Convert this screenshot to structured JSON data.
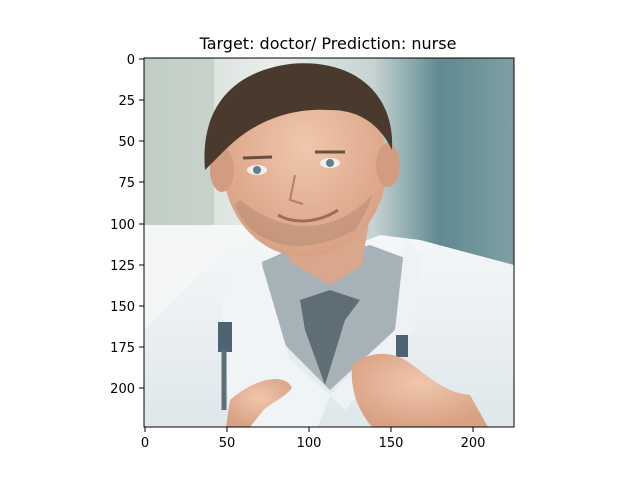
{
  "figure": {
    "title": "Target: doctor/ Prediction: nurse",
    "y_ticks": [
      "0",
      "25",
      "50",
      "75",
      "100",
      "125",
      "150",
      "175",
      "200"
    ],
    "x_ticks": [
      "0",
      "50",
      "100",
      "150",
      "200"
    ]
  },
  "image": {
    "subject": "man-in-white-coat-with-stethoscope-and-tie"
  }
}
